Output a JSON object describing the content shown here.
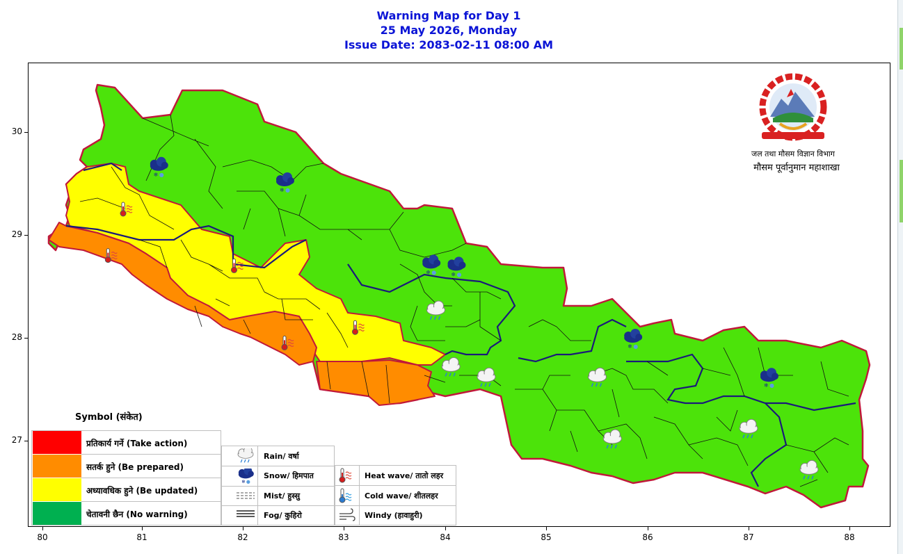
{
  "title": {
    "line1": "Warning Map for Day 1",
    "line2": "25 May 2026, Monday",
    "line3": "Issue Date: 2083-02-11 08:00 AM"
  },
  "axes": {
    "x_ticks": [
      "80",
      "81",
      "82",
      "83",
      "84",
      "85",
      "86",
      "87",
      "88"
    ],
    "y_ticks": [
      "30",
      "29",
      "28",
      "27"
    ]
  },
  "logo": {
    "org_line1": "जल तथा मौसम विज्ञान विभाग",
    "org_line2": "मौसम पूर्वानुमान महाशाखा"
  },
  "legend": {
    "title": "Symbol (संकेत)",
    "levels": [
      {
        "label": "प्रतिकार्य गर्ने (Take action)",
        "color": "#ff0000"
      },
      {
        "label": "सतर्क हुने (Be prepared)",
        "color": "#ff8c00"
      },
      {
        "label": "अध्यावधिक हुने (Be updated)",
        "color": "#ffff00"
      },
      {
        "label": "चेतावनी छैन (No warning)",
        "color": "#00b050"
      }
    ],
    "symbols_left": [
      {
        "label": "Rain/ वर्षा",
        "icon": "rain-icon"
      },
      {
        "label": "Snow/ हिमपात",
        "icon": "snow-icon"
      },
      {
        "label": "Mist/ हुस्सु",
        "icon": "mist-icon"
      },
      {
        "label": "Fog/ कुहिरो",
        "icon": "fog-icon"
      }
    ],
    "symbols_right": [
      {
        "label": "Heat wave/ तातो लहर",
        "icon": "heat-wave-icon"
      },
      {
        "label": "Cold wave/ शीतलहर",
        "icon": "cold-wave-icon"
      },
      {
        "label": "Windy (हावाहुरी)",
        "icon": "windy-icon"
      }
    ]
  },
  "colors": {
    "no_warning_map": "#4ce30a",
    "be_updated": "#ffff00",
    "be_prepared": "#ff8c00",
    "province_border": "#c0183a",
    "district_border": "#000000",
    "title": "#0b14d6"
  },
  "map_zones": [
    {
      "zone": "far-west-north",
      "level": "no-warning"
    },
    {
      "zone": "west-hills",
      "level": "be-updated"
    },
    {
      "zone": "west-terai",
      "level": "be-prepared"
    },
    {
      "zone": "central-east",
      "level": "no-warning"
    }
  ],
  "map_symbols": [
    {
      "icon": "snow-icon",
      "lon": 81.15,
      "lat": 29.65
    },
    {
      "icon": "snow-icon",
      "lon": 82.4,
      "lat": 29.5
    },
    {
      "icon": "snow-icon",
      "lon": 83.85,
      "lat": 28.7
    },
    {
      "icon": "snow-icon",
      "lon": 84.1,
      "lat": 28.68
    },
    {
      "icon": "snow-icon",
      "lon": 85.85,
      "lat": 27.98
    },
    {
      "icon": "snow-icon",
      "lon": 87.2,
      "lat": 27.6
    },
    {
      "icon": "rain-icon",
      "lon": 83.9,
      "lat": 28.25
    },
    {
      "icon": "rain-icon",
      "lon": 84.05,
      "lat": 27.7
    },
    {
      "icon": "rain-icon",
      "lon": 84.4,
      "lat": 27.6
    },
    {
      "icon": "rain-icon",
      "lon": 85.5,
      "lat": 27.6
    },
    {
      "icon": "rain-icon",
      "lon": 85.65,
      "lat": 27.0
    },
    {
      "icon": "rain-icon",
      "lon": 87.0,
      "lat": 27.1
    },
    {
      "icon": "rain-icon",
      "lon": 87.6,
      "lat": 26.7
    },
    {
      "icon": "heat-wave-icon",
      "lon": 80.8,
      "lat": 29.25
    },
    {
      "icon": "heat-wave-icon",
      "lon": 80.65,
      "lat": 28.8
    },
    {
      "icon": "heat-wave-icon",
      "lon": 81.9,
      "lat": 28.7
    },
    {
      "icon": "heat-wave-icon",
      "lon": 82.4,
      "lat": 27.95
    },
    {
      "icon": "heat-wave-icon",
      "lon": 83.1,
      "lat": 28.1
    }
  ]
}
